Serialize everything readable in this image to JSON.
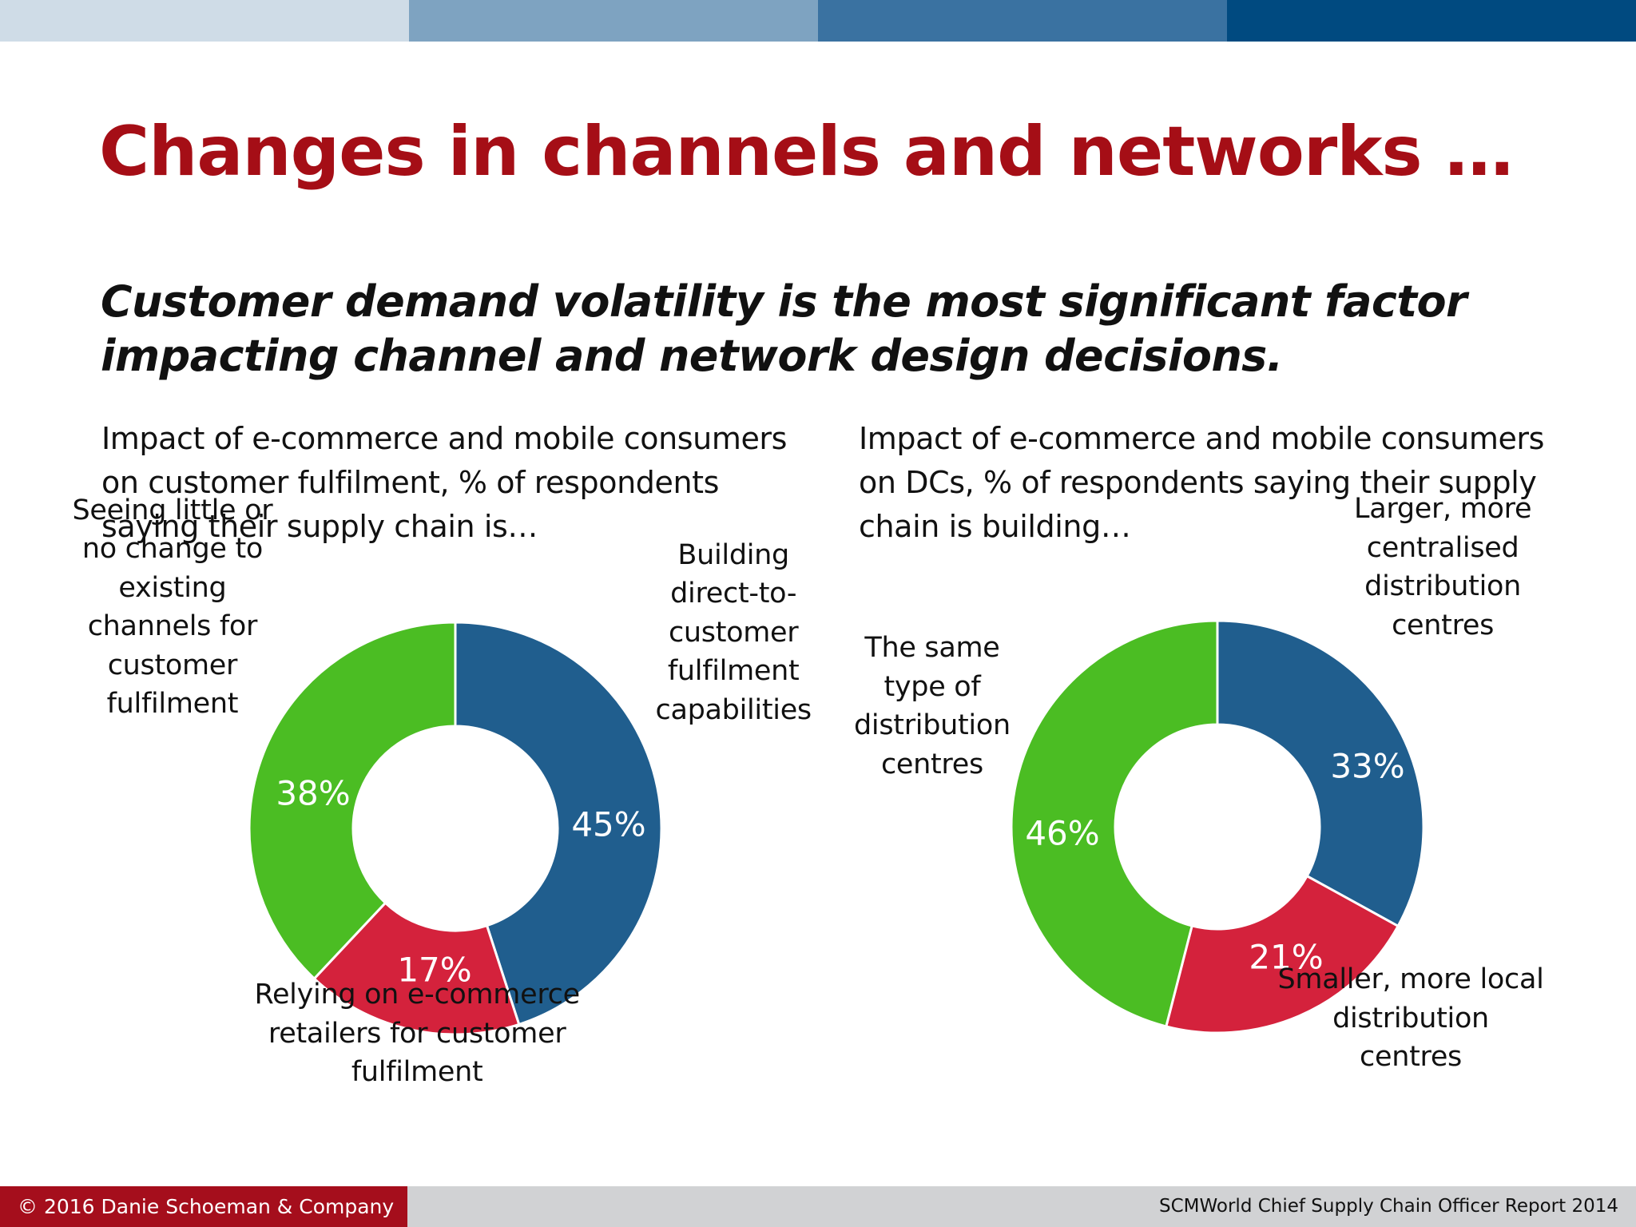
{
  "colors": {
    "topbar": [
      "#cfdce7",
      "#7ea3c1",
      "#3a72a1",
      "#004a80"
    ],
    "title": "#a50e16",
    "footer_left_bg": "#a50e1c",
    "footer_right_bg": "#d1d2d4"
  },
  "title": "Changes in channels and networks …",
  "subtitle_line1": "Customer demand volatility is the most significant factor",
  "subtitle_line2": "impacting channel and network design decisions.",
  "caption_left": {
    "line1": "Impact of e-commerce and mobile consumers",
    "line2": "on customer fulfilment, % of respondents",
    "line3": "saying their supply chain is…"
  },
  "caption_right": {
    "line1": "Impact of e-commerce and mobile consumers",
    "line2": "on DCs, % of respondents saying their supply",
    "line3": "chain is building…"
  },
  "chart_data": [
    {
      "type": "pie",
      "donut": true,
      "title": "Impact of e-commerce and mobile consumers on customer fulfilment, % of respondents saying their supply chain is…",
      "slices": [
        {
          "label_lines": [
            "Building",
            "direct-to-",
            "customer",
            "fulfilment",
            "capabilities"
          ],
          "value": 45,
          "value_label": "45%",
          "color": "#205e8e"
        },
        {
          "label_lines": [
            "Relying on e-commerce",
            "retailers for customer",
            "fulfilment"
          ],
          "value": 17,
          "value_label": "17%",
          "color": "#d4223c"
        },
        {
          "label_lines": [
            "Seeing little or",
            "no change to",
            "existing",
            "channels for",
            "customer",
            "fulfilment"
          ],
          "value": 38,
          "value_label": "38%",
          "color": "#4bbd23"
        }
      ]
    },
    {
      "type": "pie",
      "donut": true,
      "title": "Impact of e-commerce and mobile consumers on DCs, % of respondents saying their supply chain is building…",
      "slices": [
        {
          "label_lines": [
            "Larger, more",
            "centralised",
            "distribution",
            "centres"
          ],
          "value": 33,
          "value_label": "33%",
          "color": "#205e8e"
        },
        {
          "label_lines": [
            "Smaller, more local",
            "distribution",
            "centres"
          ],
          "value": 21,
          "value_label": "21%",
          "color": "#d4223c"
        },
        {
          "label_lines": [
            "The same",
            "type of",
            "distribution",
            "centres"
          ],
          "value": 46,
          "value_label": "46%",
          "color": "#4bbd23"
        }
      ]
    }
  ],
  "footer": {
    "left": "© 2016 Danie Schoeman & Company",
    "right": "SCMWorld Chief Supply Chain Officer Report 2014"
  }
}
